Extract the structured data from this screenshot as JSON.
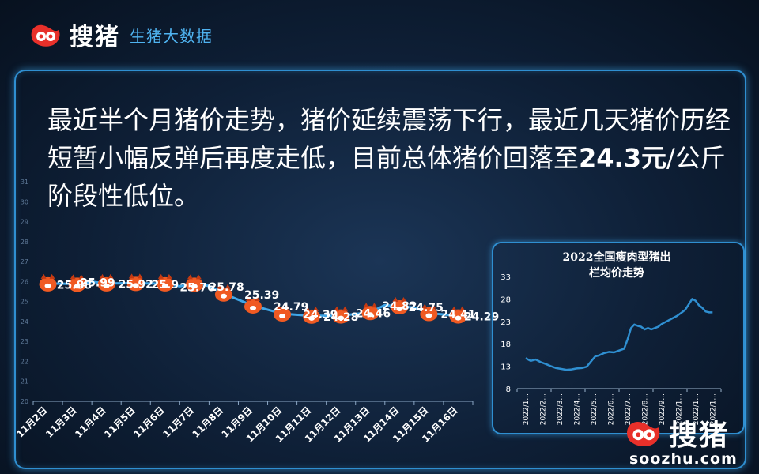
{
  "brand": {
    "logo_text": "搜猪",
    "subtitle": "生猪大数据",
    "domain": "soozhu.com",
    "colors": {
      "accent_red": "#e8302a",
      "accent_blue": "#4fb3f0"
    }
  },
  "headline": {
    "part1": "最近半个月猪价走势，猪价延续震荡下行，最近几天猪价历经短暂小幅反弹后再度走低，目前总体猪价回落至",
    "price": "24.3元",
    "part2": "/公斤阶段性低位。"
  },
  "chart_data": [
    {
      "type": "line",
      "title": "",
      "xlabel": "",
      "ylabel": "",
      "categories": [
        "11月2日",
        "11月3日",
        "11月4日",
        "11月5日",
        "11月6日",
        "11月7日",
        "11月8日",
        "11月9日",
        "11月10日",
        "11月11日",
        "11月12日",
        "11月13日",
        "11月14日",
        "11月15日",
        "11月16日"
      ],
      "ylim": [
        20,
        31
      ],
      "yticks": [
        20,
        21,
        22,
        23,
        24,
        25,
        26,
        27,
        28,
        29,
        30,
        31
      ],
      "grid": false,
      "legend": "none",
      "series": [
        {
          "x": [
            0,
            1,
            1.5,
            2,
            3,
            3.5,
            4,
            4.5,
            5,
            5.5,
            6,
            7,
            8,
            9,
            10,
            11,
            11.5,
            12,
            12.5,
            13,
            14
          ],
          "values": [
            25.9,
            25.88,
            25.99,
            25.9,
            25.92,
            25.9,
            25.9,
            25.76,
            25.88,
            25.78,
            25.39,
            24.79,
            24.39,
            24.28,
            24.29,
            24.46,
            24.82,
            24.75,
            24.7,
            24.41,
            24.29
          ],
          "markers": [
            0,
            1,
            2,
            3,
            4,
            5,
            6,
            7,
            8,
            9,
            10,
            11,
            12,
            13,
            14
          ]
        }
      ],
      "data_labels": [
        {
          "text": "25.88",
          "x": 0.9,
          "y": 25.88
        },
        {
          "text": "25.99",
          "x": 1.7,
          "y": 25.99
        },
        {
          "text": "25.92",
          "x": 3.0,
          "y": 25.92
        },
        {
          "text": "25.9",
          "x": 4.0,
          "y": 25.9
        },
        {
          "text": "25.76",
          "x": 5.1,
          "y": 25.76
        },
        {
          "text": "25.78",
          "x": 6.1,
          "y": 25.78
        },
        {
          "text": "25.39",
          "x": 7.3,
          "y": 25.39
        },
        {
          "text": "24.79",
          "x": 8.3,
          "y": 24.79
        },
        {
          "text": "24.39",
          "x": 9.3,
          "y": 24.39
        },
        {
          "text": "24.28",
          "x": 10.0,
          "y": 24.28
        },
        {
          "text": "24.46",
          "x": 11.1,
          "y": 24.46
        },
        {
          "text": "24.82",
          "x": 12.0,
          "y": 24.82
        },
        {
          "text": "24.75",
          "x": 12.9,
          "y": 24.75
        },
        {
          "text": "24.41",
          "x": 14.0,
          "y": 24.41
        },
        {
          "text": "24.29",
          "x": 14.8,
          "y": 24.29
        }
      ],
      "colors": {
        "line": "#3fa6e8",
        "marker": "#f05a22",
        "label": "#ffffff"
      }
    },
    {
      "type": "line",
      "title": "2022全国瘦肉型猪出栏均价走势",
      "xlabel": "",
      "ylabel": "",
      "categories": [
        "2022/1...",
        "2022/2...",
        "2022/3...",
        "2022/4...",
        "2022/5...",
        "2022/6...",
        "2022/7...",
        "2022/8...",
        "2022/9...",
        "2022/1...",
        "2022/1...",
        "2022/1..."
      ],
      "ylim": [
        8,
        33
      ],
      "yticks": [
        8,
        13,
        18,
        23,
        28,
        33
      ],
      "grid": false,
      "legend": "none",
      "series": [
        {
          "x": [
            0,
            0.3,
            0.6,
            0.9,
            1.2,
            1.5,
            1.8,
            2.1,
            2.4,
            2.7,
            3.0,
            3.3,
            3.6,
            3.9,
            4.1,
            4.3,
            4.6,
            4.9,
            5.2,
            5.5,
            5.8,
            6.0,
            6.2,
            6.4,
            6.6,
            6.8,
            7.0,
            7.2,
            7.4,
            7.6,
            7.8,
            8.0,
            8.3,
            8.6,
            8.9,
            9.2,
            9.4,
            9.6,
            9.8,
            10.0,
            10.2,
            10.4,
            10.6,
            10.8,
            11.0
          ],
          "values": [
            14.8,
            14.2,
            14.5,
            13.9,
            13.5,
            13.0,
            12.6,
            12.4,
            12.2,
            12.3,
            12.5,
            12.6,
            12.9,
            14.3,
            15.2,
            15.4,
            15.9,
            16.2,
            16.1,
            16.5,
            16.9,
            19.0,
            21.5,
            22.3,
            22.0,
            21.8,
            21.2,
            21.5,
            21.2,
            21.5,
            21.8,
            22.4,
            23.0,
            23.6,
            24.2,
            25.0,
            25.6,
            26.8,
            28.0,
            27.6,
            26.6,
            26.0,
            25.2,
            25.0,
            25.0
          ]
        }
      ],
      "colors": {
        "line": "#2f8fd1"
      }
    }
  ]
}
